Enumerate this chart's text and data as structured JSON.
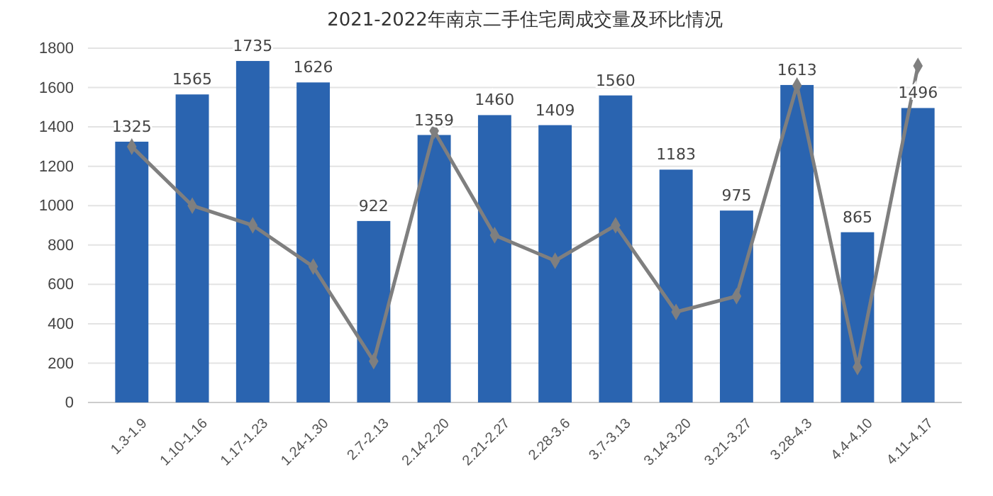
{
  "chart_data": {
    "type": "bar",
    "title": "2021-2022年南京二手住宅周成交量及环比情况",
    "categories": [
      "1.3-1.9",
      "1.10-1.16",
      "1.17-1.23",
      "1.24-1.30",
      "2.7-2.13",
      "2.14-2.20",
      "2.21-2.27",
      "2.28-3.6",
      "3.7-3.13",
      "3.14-3.20",
      "3.21-3.27",
      "3.28-4.3",
      "4.4-4.10",
      "4.11-4.17"
    ],
    "series": [
      {
        "color": "#2a64b0",
        "values": [
          1325,
          1565,
          1735,
          1626,
          922,
          1359,
          1460,
          1409,
          1560,
          1183,
          975,
          1613,
          865,
          1496
        ],
        "data_labels": true
      },
      {
        "type": "line",
        "color": "#7f7f7f",
        "values": [
          1300,
          1000,
          900,
          690,
          210,
          1380,
          850,
          720,
          900,
          460,
          540,
          1610,
          180,
          1710
        ],
        "marker": "diamond"
      }
    ],
    "ylim": [
      0,
      1800
    ],
    "yticks": [
      0,
      200,
      400,
      600,
      800,
      1000,
      1200,
      1400,
      1600,
      1800
    ],
    "grid": "y"
  }
}
